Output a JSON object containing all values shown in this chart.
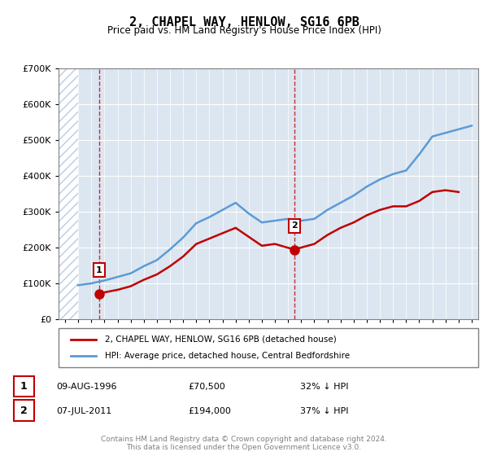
{
  "title": "2, CHAPEL WAY, HENLOW, SG16 6PB",
  "subtitle": "Price paid vs. HM Land Registry's House Price Index (HPI)",
  "legend_line1": "2, CHAPEL WAY, HENLOW, SG16 6PB (detached house)",
  "legend_line2": "HPI: Average price, detached house, Central Bedfordshire",
  "annotation1_label": "1",
  "annotation1_date": "09-AUG-1996",
  "annotation1_price": "£70,500",
  "annotation1_hpi": "32% ↓ HPI",
  "annotation2_label": "2",
  "annotation2_date": "07-JUL-2011",
  "annotation2_price": "£194,000",
  "annotation2_hpi": "37% ↓ HPI",
  "footer": "Contains HM Land Registry data © Crown copyright and database right 2024.\nThis data is licensed under the Open Government Licence v3.0.",
  "hpi_color": "#5b9bd5",
  "price_color": "#c00000",
  "annotation_box_color": "#c00000",
  "background_plot": "#dce6f1",
  "hatch_color": "#b8cce4",
  "ylim": [
    0,
    700000
  ],
  "yticks": [
    0,
    100000,
    200000,
    300000,
    400000,
    500000,
    600000,
    700000
  ],
  "ytick_labels": [
    "£0",
    "£100K",
    "£200K",
    "£300K",
    "£400K",
    "£500K",
    "£600K",
    "£700K"
  ],
  "sale1_x": 1996.6,
  "sale1_y": 70500,
  "sale2_x": 2011.5,
  "sale2_y": 194000,
  "xmin": 1993.5,
  "xmax": 2025.5,
  "hatch_xmax": 1995.0,
  "hpi_x": [
    1995,
    1996,
    1997,
    1998,
    1999,
    2000,
    2001,
    2002,
    2003,
    2004,
    2005,
    2006,
    2007,
    2008,
    2009,
    2010,
    2011,
    2012,
    2013,
    2014,
    2015,
    2016,
    2017,
    2018,
    2019,
    2020,
    2021,
    2022,
    2023,
    2024,
    2025
  ],
  "hpi_y": [
    95000,
    100000,
    108000,
    118000,
    128000,
    148000,
    165000,
    195000,
    228000,
    268000,
    285000,
    305000,
    325000,
    295000,
    270000,
    275000,
    280000,
    275000,
    280000,
    305000,
    325000,
    345000,
    370000,
    390000,
    405000,
    415000,
    460000,
    510000,
    520000,
    530000,
    540000
  ],
  "price_x": [
    1996.6,
    1997,
    1998,
    1999,
    2000,
    2001,
    2002,
    2003,
    2004,
    2005,
    2006,
    2007,
    2008,
    2009,
    2010,
    2011.5,
    2012,
    2013,
    2014,
    2015,
    2016,
    2017,
    2018,
    2019,
    2020,
    2021,
    2022,
    2023,
    2024
  ],
  "price_y": [
    70500,
    75000,
    82000,
    92000,
    110000,
    125000,
    148000,
    175000,
    210000,
    225000,
    240000,
    255000,
    230000,
    205000,
    210000,
    194000,
    200000,
    210000,
    235000,
    255000,
    270000,
    290000,
    305000,
    315000,
    315000,
    330000,
    355000,
    360000,
    355000
  ]
}
